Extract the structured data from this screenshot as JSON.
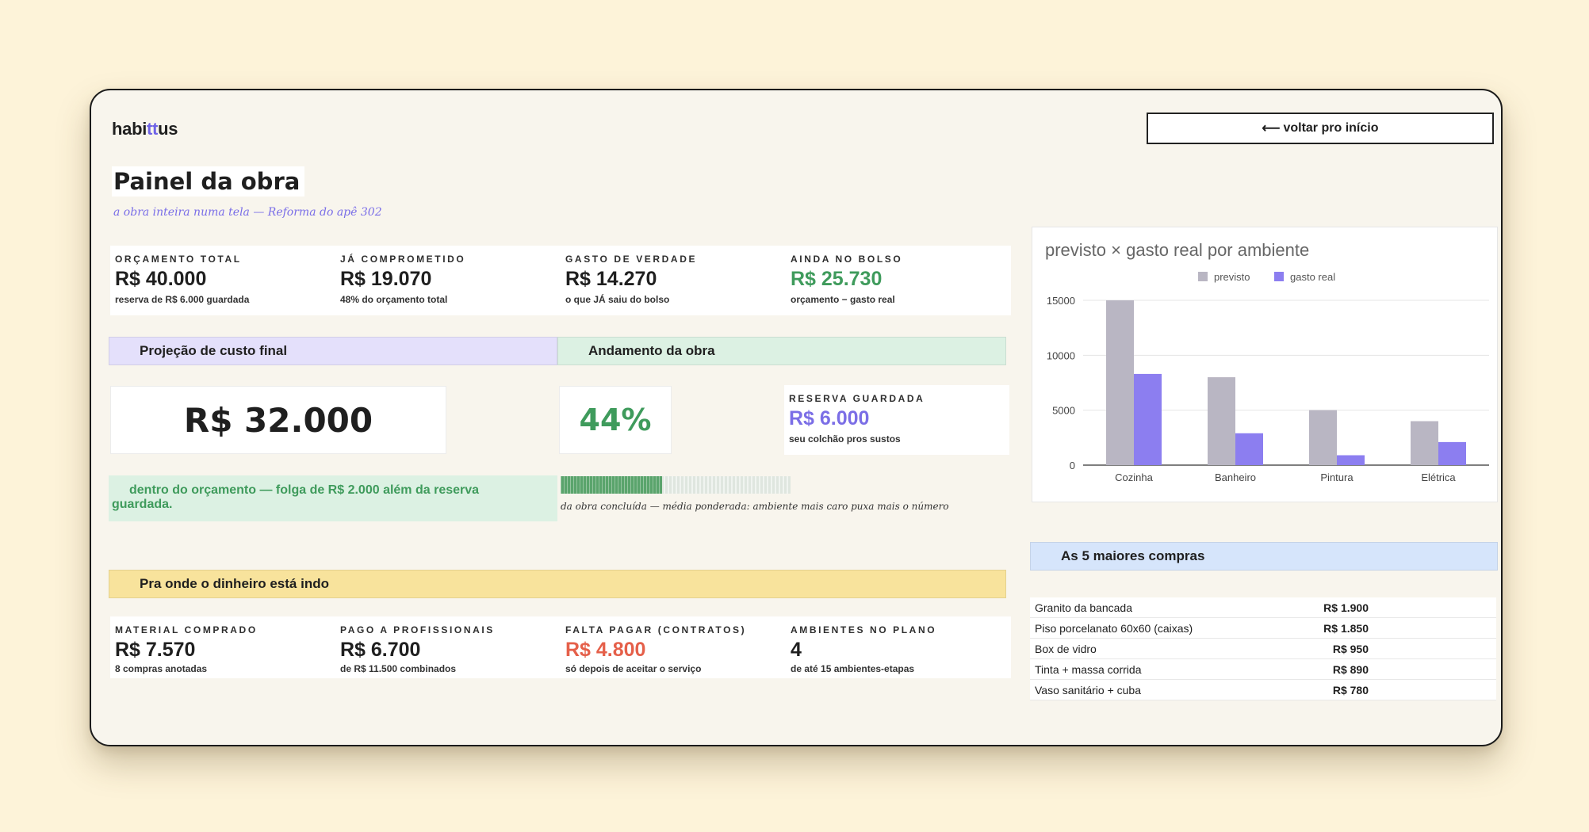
{
  "brand": {
    "prefix": "habi",
    "accent": "tt",
    "suffix": "us"
  },
  "nav": {
    "back_label": "voltar pro início",
    "back_arrow": "⟵"
  },
  "page": {
    "title": "Painel da obra",
    "subtitle": "a obra inteira numa tela — Reforma do apê 302"
  },
  "summary": [
    {
      "label": "ORÇAMENTO TOTAL",
      "value": "R$ 40.000",
      "note": "reserva de R$ 6.000 guardada"
    },
    {
      "label": "JÁ COMPROMETIDO",
      "value": "R$ 19.070",
      "note": "48% do orçamento total"
    },
    {
      "label": "GASTO DE VERDADE",
      "value": "R$ 14.270",
      "note": "o que JÁ saiu do bolso"
    },
    {
      "label": "AINDA NO BOLSO",
      "value": "R$ 25.730",
      "note": "orçamento − gasto real"
    }
  ],
  "projection": {
    "header": "Projeção de custo final",
    "value": "R$ 32.000",
    "message_line1": "dentro do orçamento — folga de R$ 2.000 além da reserva",
    "message_line2": "guardada."
  },
  "progress": {
    "header": "Andamento da obra",
    "percent_label": "44%",
    "percent_value": 0.44,
    "caption": "da obra concluída — média ponderada: ambiente mais caro puxa mais o número"
  },
  "reserve": {
    "label": "RESERVA GUARDADA",
    "value": "R$ 6.000",
    "note": "seu colchão pros sustos"
  },
  "money_flow": {
    "header": "Pra onde o dinheiro está indo",
    "stats": [
      {
        "label": "MATERIAL COMPRADO",
        "value": "R$ 7.570",
        "note": "8 compras anotadas"
      },
      {
        "label": "PAGO A PROFISSIONAIS",
        "value": "R$ 6.700",
        "note": "de R$ 11.500 combinados"
      },
      {
        "label": "FALTA PAGAR (CONTRATOS)",
        "value": "R$ 4.800",
        "note": "só depois de aceitar o serviço"
      },
      {
        "label": "AMBIENTES NO PLANO",
        "value": "4",
        "note": "de até 15 ambientes-etapas"
      }
    ]
  },
  "colors": {
    "accent": "#6f63e6",
    "green": "#3f9b5c",
    "red": "#e5604a",
    "previsto": "#b9b6c3",
    "gasto_real": "#8c7ef0"
  },
  "chart_data": {
    "type": "bar",
    "title": "previsto × gasto real por ambiente",
    "categories": [
      "Cozinha",
      "Banheiro",
      "Pintura",
      "Elétrica"
    ],
    "series": [
      {
        "name": "previsto",
        "values": [
          15000,
          8000,
          5000,
          4000
        ]
      },
      {
        "name": "gasto real",
        "values": [
          8300,
          2900,
          900,
          2100
        ]
      }
    ],
    "ylim": [
      0,
      15000
    ],
    "yticks": [
      0,
      5000,
      10000,
      15000
    ],
    "grid": true,
    "legend": "top-center"
  },
  "purchases": {
    "header": "As 5 maiores compras",
    "rows": [
      {
        "name": "Granito da bancada",
        "price": "R$ 1.900"
      },
      {
        "name": "Piso porcelanato 60x60 (caixas)",
        "price": "R$ 1.850"
      },
      {
        "name": "Box de vidro",
        "price": "R$ 950"
      },
      {
        "name": "Tinta + massa corrida",
        "price": "R$ 890"
      },
      {
        "name": "Vaso sanitário + cuba",
        "price": "R$ 780"
      }
    ]
  }
}
